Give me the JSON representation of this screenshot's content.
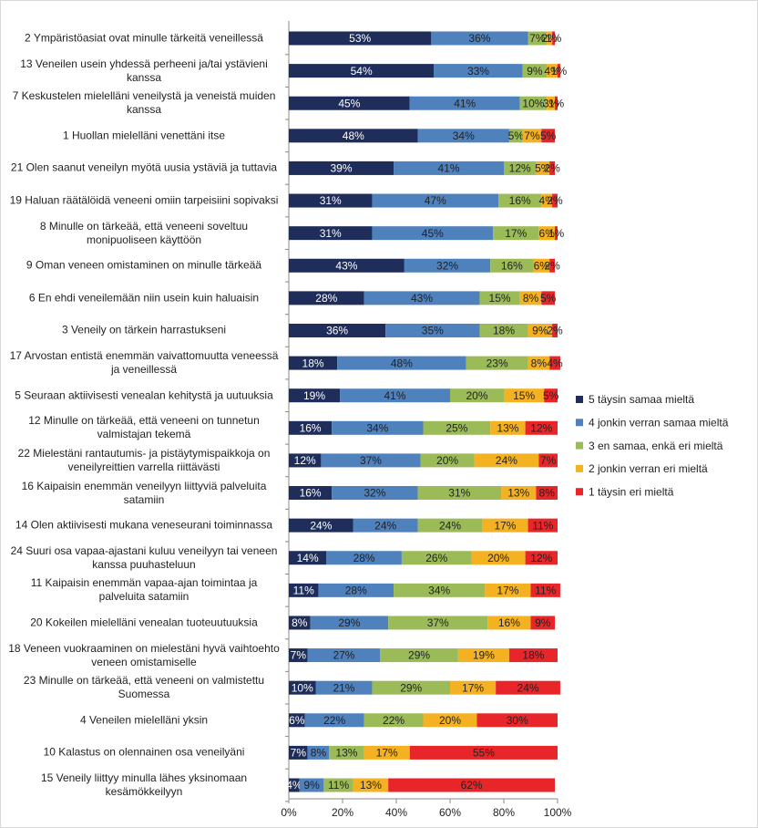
{
  "chart_data": {
    "type": "stacked_barh",
    "categories": [
      "2 Ympäristöasiat ovat minulle tärkeitä veneillessä",
      "13 Veneilen usein yhdessä perheeni ja/tai ystävieni kanssa",
      "7 Keskustelen mielelläni veneilystä ja veneistä muiden kanssa",
      "1 Huollan mielelläni venettäni itse",
      "21 Olen saanut veneilyn myötä uusia ystäviä ja tuttavia",
      "19 Haluan räätälöidä veneeni omiin tarpeisiini sopivaksi",
      "8 Minulle on tärkeää, että veneeni soveltuu monipuoliseen käyttöön",
      "9 Oman veneen omistaminen on minulle tärkeää",
      "6 En ehdi veneilemään niin usein kuin haluaisin",
      "3 Veneily on tärkein harrastukseni",
      "17 Arvostan entistä enemmän vaivattomuutta veneessä ja veneillessä",
      "5 Seuraan aktiivisesti venealan kehitystä ja uutuuksia",
      "12 Minulle on tärkeää, että veneeni on tunnetun valmistajan tekemä",
      "22 Mielestäni rantautumis- ja pistäytymispaikkoja on veneilyreittien varrella riittävästi",
      "16 Kaipaisin enemmän veneilyyn liittyviä palveluita satamiin",
      "14 Olen aktiivisesti mukana veneseurani toiminnassa",
      "24 Suuri osa vapaa-ajastani kuluu veneilyyn tai veneen kanssa puuhasteluun",
      "11 Kaipaisin enemmän vapaa-ajan toimintaa ja palveluita satamiin",
      "20 Kokeilen mielelläni venealan tuoteuutuuksia",
      "18 Veneen vuokraaminen on mielestäni hyvä vaihtoehto veneen omistamiselle",
      "23 Minulle on tärkeää, että veneeni on valmistettu Suomessa",
      "4 Veneilen mielelläni yksin",
      "10 Kalastus on olennainen osa veneilyäni",
      "15 Veneily liittyy minulla lähes yksinomaan kesämökkeilyyn"
    ],
    "series": [
      {
        "name": "5 täysin samaa mieltä",
        "color": "#1f2d5a",
        "values": [
          53,
          54,
          45,
          48,
          39,
          31,
          31,
          43,
          28,
          36,
          18,
          19,
          16,
          12,
          16,
          24,
          14,
          11,
          8,
          7,
          10,
          6,
          7,
          4
        ],
        "value_labels": [
          "53%",
          "54%",
          "45%",
          "48%",
          "39%",
          "31%",
          "31%",
          "43%",
          "28%",
          "36%",
          "18%",
          "19%",
          "16%",
          "12%",
          "16%",
          "24%",
          "14%",
          "11%",
          "8%",
          "7%",
          "10%",
          "6%",
          "7%",
          "4%"
        ]
      },
      {
        "name": "4 jonkin verran samaa mieltä",
        "color": "#4f81bd",
        "values": [
          36,
          33,
          41,
          34,
          41,
          47,
          45,
          32,
          43,
          35,
          48,
          41,
          34,
          37,
          32,
          24,
          28,
          28,
          29,
          27,
          21,
          22,
          8,
          9
        ],
        "value_labels": [
          "36%",
          "33%",
          "41%",
          "34%",
          "41%",
          "47%",
          "45%",
          "32%",
          "43%",
          "35%",
          "48%",
          "41%",
          "34%",
          "37%",
          "32%",
          "24%",
          "28%",
          "28%",
          "29%",
          "27%",
          "21%",
          "22%",
          "8%",
          "9%"
        ]
      },
      {
        "name": "3 en samaa, enkä eri mieltä",
        "color": "#9bbb59",
        "values": [
          7,
          9,
          10,
          5,
          12,
          16,
          17,
          16,
          15,
          18,
          23,
          20,
          25,
          20,
          31,
          24,
          26,
          34,
          37,
          29,
          29,
          22,
          13,
          11
        ],
        "value_labels": [
          "7%",
          "9%",
          "10%",
          "5%",
          "12%",
          "16%",
          "17%",
          "16%",
          "15%",
          "18%",
          "23%",
          "20%",
          "25%",
          "20%",
          "31%",
          "24%",
          "26%",
          "34%",
          "37%",
          "29%",
          "29%",
          "22%",
          "13%",
          "11%"
        ]
      },
      {
        "name": "2 jonkin verran eri mieltä",
        "color": "#f4b223",
        "values": [
          2,
          4,
          3,
          7,
          5,
          4,
          6,
          6,
          8,
          9,
          8,
          15,
          13,
          24,
          13,
          17,
          20,
          17,
          16,
          19,
          17,
          20,
          17,
          13
        ],
        "value_labels": [
          "2%",
          "4%",
          "3%",
          "7%",
          "5%",
          "4%",
          "6%",
          "6%",
          "8%",
          "9%",
          "8%",
          "15%",
          "13%",
          "24%",
          "13%",
          "17%",
          "20%",
          "17%",
          "16%",
          "19%",
          "17%",
          "20%",
          "17%",
          "13%"
        ]
      },
      {
        "name": "1 täysin eri mieltä",
        "color": "#e8262a",
        "values": [
          1,
          1,
          1,
          5,
          2,
          2,
          1,
          2,
          5,
          2,
          4,
          5,
          12,
          7,
          8,
          11,
          12,
          11,
          9,
          18,
          24,
          30,
          55,
          62
        ],
        "value_labels": [
          "1%",
          "1%",
          "1%",
          "5%",
          "2%",
          "2%",
          "1%",
          "2%",
          "5%",
          "2%",
          "4%",
          "5%",
          "12%",
          "7%",
          "8%",
          "11%",
          "12%",
          "11%",
          "9%",
          "18%",
          "24%",
          "30%",
          "55%",
          "62%"
        ]
      }
    ],
    "xlim": [
      0,
      100
    ],
    "xticks": [
      {
        "value": 0,
        "label": "0%"
      },
      {
        "value": 20,
        "label": "20%"
      },
      {
        "value": 40,
        "label": "40%"
      },
      {
        "value": 60,
        "label": "60%"
      },
      {
        "value": 80,
        "label": "80%"
      },
      {
        "value": 100,
        "label": "100%"
      }
    ],
    "legend": "right"
  }
}
